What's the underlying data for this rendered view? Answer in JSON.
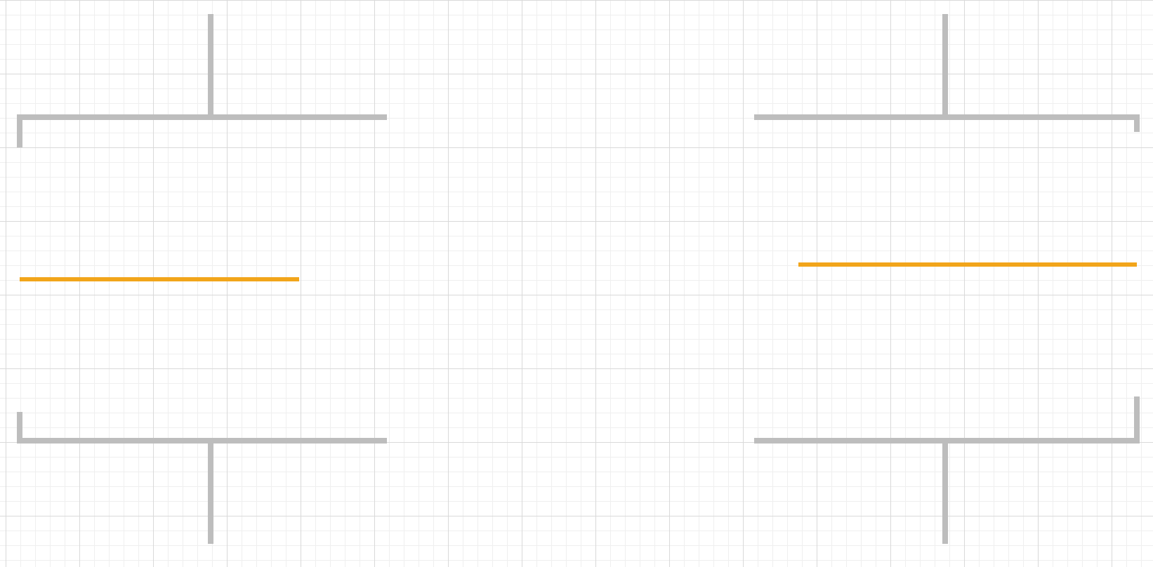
{
  "diagram": {
    "colors": {
      "background": "#ffffff",
      "grid_major": "#d9d9d9",
      "grid_minor": "#efefef",
      "connector": "#bdbdbd",
      "highlight": "#f2a51a"
    },
    "elements": [
      {
        "name": "left-top-bracket",
        "kind": "connector"
      },
      {
        "name": "left-bottom-bracket",
        "kind": "connector"
      },
      {
        "name": "left-highlight-line",
        "kind": "highlight"
      },
      {
        "name": "right-top-bracket",
        "kind": "connector"
      },
      {
        "name": "right-bottom-bracket",
        "kind": "connector"
      },
      {
        "name": "right-highlight-line",
        "kind": "highlight"
      }
    ]
  }
}
